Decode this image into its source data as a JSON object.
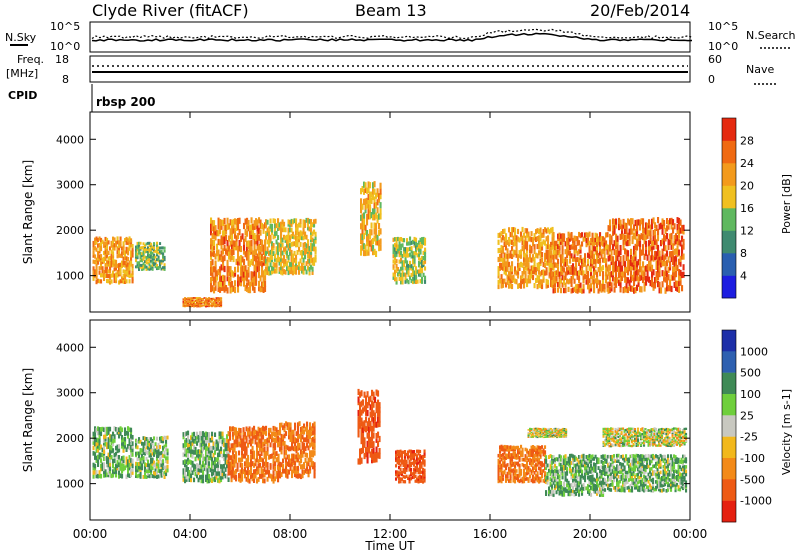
{
  "header": {
    "title": "Clyde River (fitACF)",
    "beam": "Beam 13",
    "date": "20/Feb/2014"
  },
  "panels": {
    "nsky_label": "N.Sky",
    "nsearch_label": "N.Search",
    "freq_label_1": "Freq.",
    "freq_label_2": "[MHz]",
    "nave_label": "Nave",
    "cpid_label": "CPID",
    "cpid_value": "rbsp 200",
    "noise_ticks": [
      "10^5",
      "10^0"
    ],
    "noise_ticks_right": [
      "10^5",
      "10^0"
    ],
    "freq_ticks": [
      "18",
      "8"
    ],
    "nave_ticks": [
      "60",
      "0"
    ]
  },
  "chart_data": [
    {
      "type": "heatmap",
      "name": "power",
      "ylabel": "Slant Range [km]",
      "ylim": [
        200,
        4600
      ],
      "yticks": [
        "1000",
        "2000",
        "3000",
        "4000"
      ],
      "xlim_hours": [
        0,
        24
      ],
      "colorbar": {
        "label": "Power [dB]",
        "ticks": [
          "4",
          "8",
          "12",
          "16",
          "20",
          "24",
          "28"
        ],
        "colors": [
          "#1d1de0",
          "#2a5fb0",
          "#3f8a70",
          "#5fb85f",
          "#f0c020",
          "#f39a1c",
          "#f06a12",
          "#e52a10"
        ]
      },
      "bands": [
        {
          "t0": 0.1,
          "t1": 1.7,
          "r0": 800,
          "r1": 1800,
          "v": 22
        },
        {
          "t0": 1.8,
          "t1": 3.0,
          "r0": 1100,
          "r1": 1700,
          "v": 14
        },
        {
          "t0": 3.7,
          "t1": 5.2,
          "r0": 300,
          "r1": 500,
          "v": 24
        },
        {
          "t0": 4.8,
          "t1": 7.0,
          "r0": 600,
          "r1": 2200,
          "v": 24
        },
        {
          "t0": 7.0,
          "t1": 9.0,
          "r0": 1000,
          "r1": 2200,
          "v": 18
        },
        {
          "t0": 10.8,
          "t1": 11.6,
          "r0": 1400,
          "r1": 3000,
          "v": 20
        },
        {
          "t0": 12.1,
          "t1": 13.4,
          "r0": 800,
          "r1": 1800,
          "v": 16
        },
        {
          "t0": 16.3,
          "t1": 18.5,
          "r0": 700,
          "r1": 2000,
          "v": 22
        },
        {
          "t0": 18.5,
          "t1": 20.7,
          "r0": 600,
          "r1": 1900,
          "v": 24
        },
        {
          "t0": 20.7,
          "t1": 23.7,
          "r0": 600,
          "r1": 2200,
          "v": 26
        }
      ]
    },
    {
      "type": "heatmap",
      "name": "velocity",
      "ylabel": "Slant Range [km]",
      "ylim": [
        200,
        4600
      ],
      "yticks": [
        "1000",
        "2000",
        "3000",
        "4000"
      ],
      "xlabel": "Time UT",
      "xticks": [
        "00:00",
        "04:00",
        "08:00",
        "12:00",
        "16:00",
        "20:00",
        "00:00"
      ],
      "xlim_hours": [
        0,
        24
      ],
      "colorbar": {
        "label": "Velocity [m s-1]",
        "ticks": [
          "1000",
          "500",
          "100",
          "25",
          "-25",
          "-100",
          "-500",
          "-1000"
        ],
        "colors": [
          "#1d2fa8",
          "#2e60b0",
          "#3f8a56",
          "#6fcf3c",
          "#c8c8c0",
          "#f2b81c",
          "#f38a18",
          "#ee5a14",
          "#e52010"
        ]
      },
      "bands": [
        {
          "t0": 0.1,
          "t1": 1.7,
          "r0": 1100,
          "r1": 2200,
          "v": 100
        },
        {
          "t0": 1.8,
          "t1": 3.1,
          "r0": 1100,
          "r1": 2000,
          "v": 100
        },
        {
          "t0": 3.7,
          "t1": 5.5,
          "r0": 1000,
          "r1": 2100,
          "v": 100
        },
        {
          "t0": 5.5,
          "t1": 7.5,
          "r0": 1000,
          "r1": 2200,
          "v": -500
        },
        {
          "t0": 7.5,
          "t1": 9.0,
          "r0": 1100,
          "r1": 2300,
          "v": -500
        },
        {
          "t0": 10.7,
          "t1": 11.6,
          "r0": 1400,
          "r1": 3000,
          "v": -900
        },
        {
          "t0": 12.2,
          "t1": 13.4,
          "r0": 1000,
          "r1": 1700,
          "v": -900
        },
        {
          "t0": 16.3,
          "t1": 18.2,
          "r0": 1000,
          "r1": 1800,
          "v": -500
        },
        {
          "t0": 17.5,
          "t1": 19.0,
          "r0": 2000,
          "r1": 2200,
          "v": 0
        },
        {
          "t0": 18.2,
          "t1": 20.5,
          "r0": 700,
          "r1": 1600,
          "v": 100
        },
        {
          "t0": 20.5,
          "t1": 23.8,
          "r0": 1800,
          "r1": 2200,
          "v": 0
        },
        {
          "t0": 20.5,
          "t1": 23.8,
          "r0": 800,
          "r1": 1600,
          "v": 100
        }
      ]
    }
  ]
}
